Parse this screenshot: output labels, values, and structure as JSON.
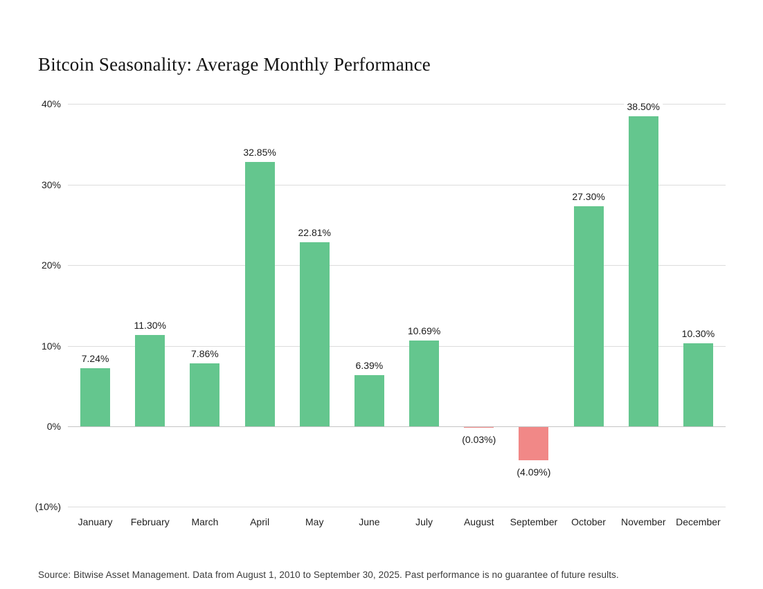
{
  "page": {
    "background_color": "#ffffff"
  },
  "header": {
    "title": "Bitcoin Seasonality: Average Monthly Performance"
  },
  "footer": {
    "source_text": "Source: Bitwise Asset Management. Data from August 1, 2010 to September 30, 2025. Past performance is no guarantee of future results."
  },
  "chart_data": {
    "type": "bar",
    "title": "Bitcoin Seasonality: Average Monthly Performance",
    "categories": [
      "January",
      "February",
      "March",
      "April",
      "May",
      "June",
      "July",
      "August",
      "September",
      "October",
      "November",
      "December"
    ],
    "values": [
      7.24,
      11.3,
      7.86,
      32.85,
      22.81,
      6.39,
      10.69,
      -0.03,
      -4.09,
      27.3,
      38.5,
      10.3
    ],
    "value_labels": [
      "7.24%",
      "11.30%",
      "7.86%",
      "32.85%",
      "22.81%",
      "6.39%",
      "10.69%",
      "(0.03%)",
      "(4.09%)",
      "27.30%",
      "38.50%",
      "10.30%"
    ],
    "xlabel": "",
    "ylabel": "",
    "ylim": [
      -10,
      40
    ],
    "ytick_values": [
      40,
      30,
      20,
      10,
      0,
      -10
    ],
    "ytick_labels": [
      "40%",
      "30%",
      "20%",
      "10%",
      "0%",
      "(10%)"
    ],
    "grid": true,
    "legend": false,
    "positive_color": "#64C68E",
    "negative_color": "#F18887",
    "grid_color": "#dcdcdc",
    "zero_line_color": "#c4c4c4"
  }
}
